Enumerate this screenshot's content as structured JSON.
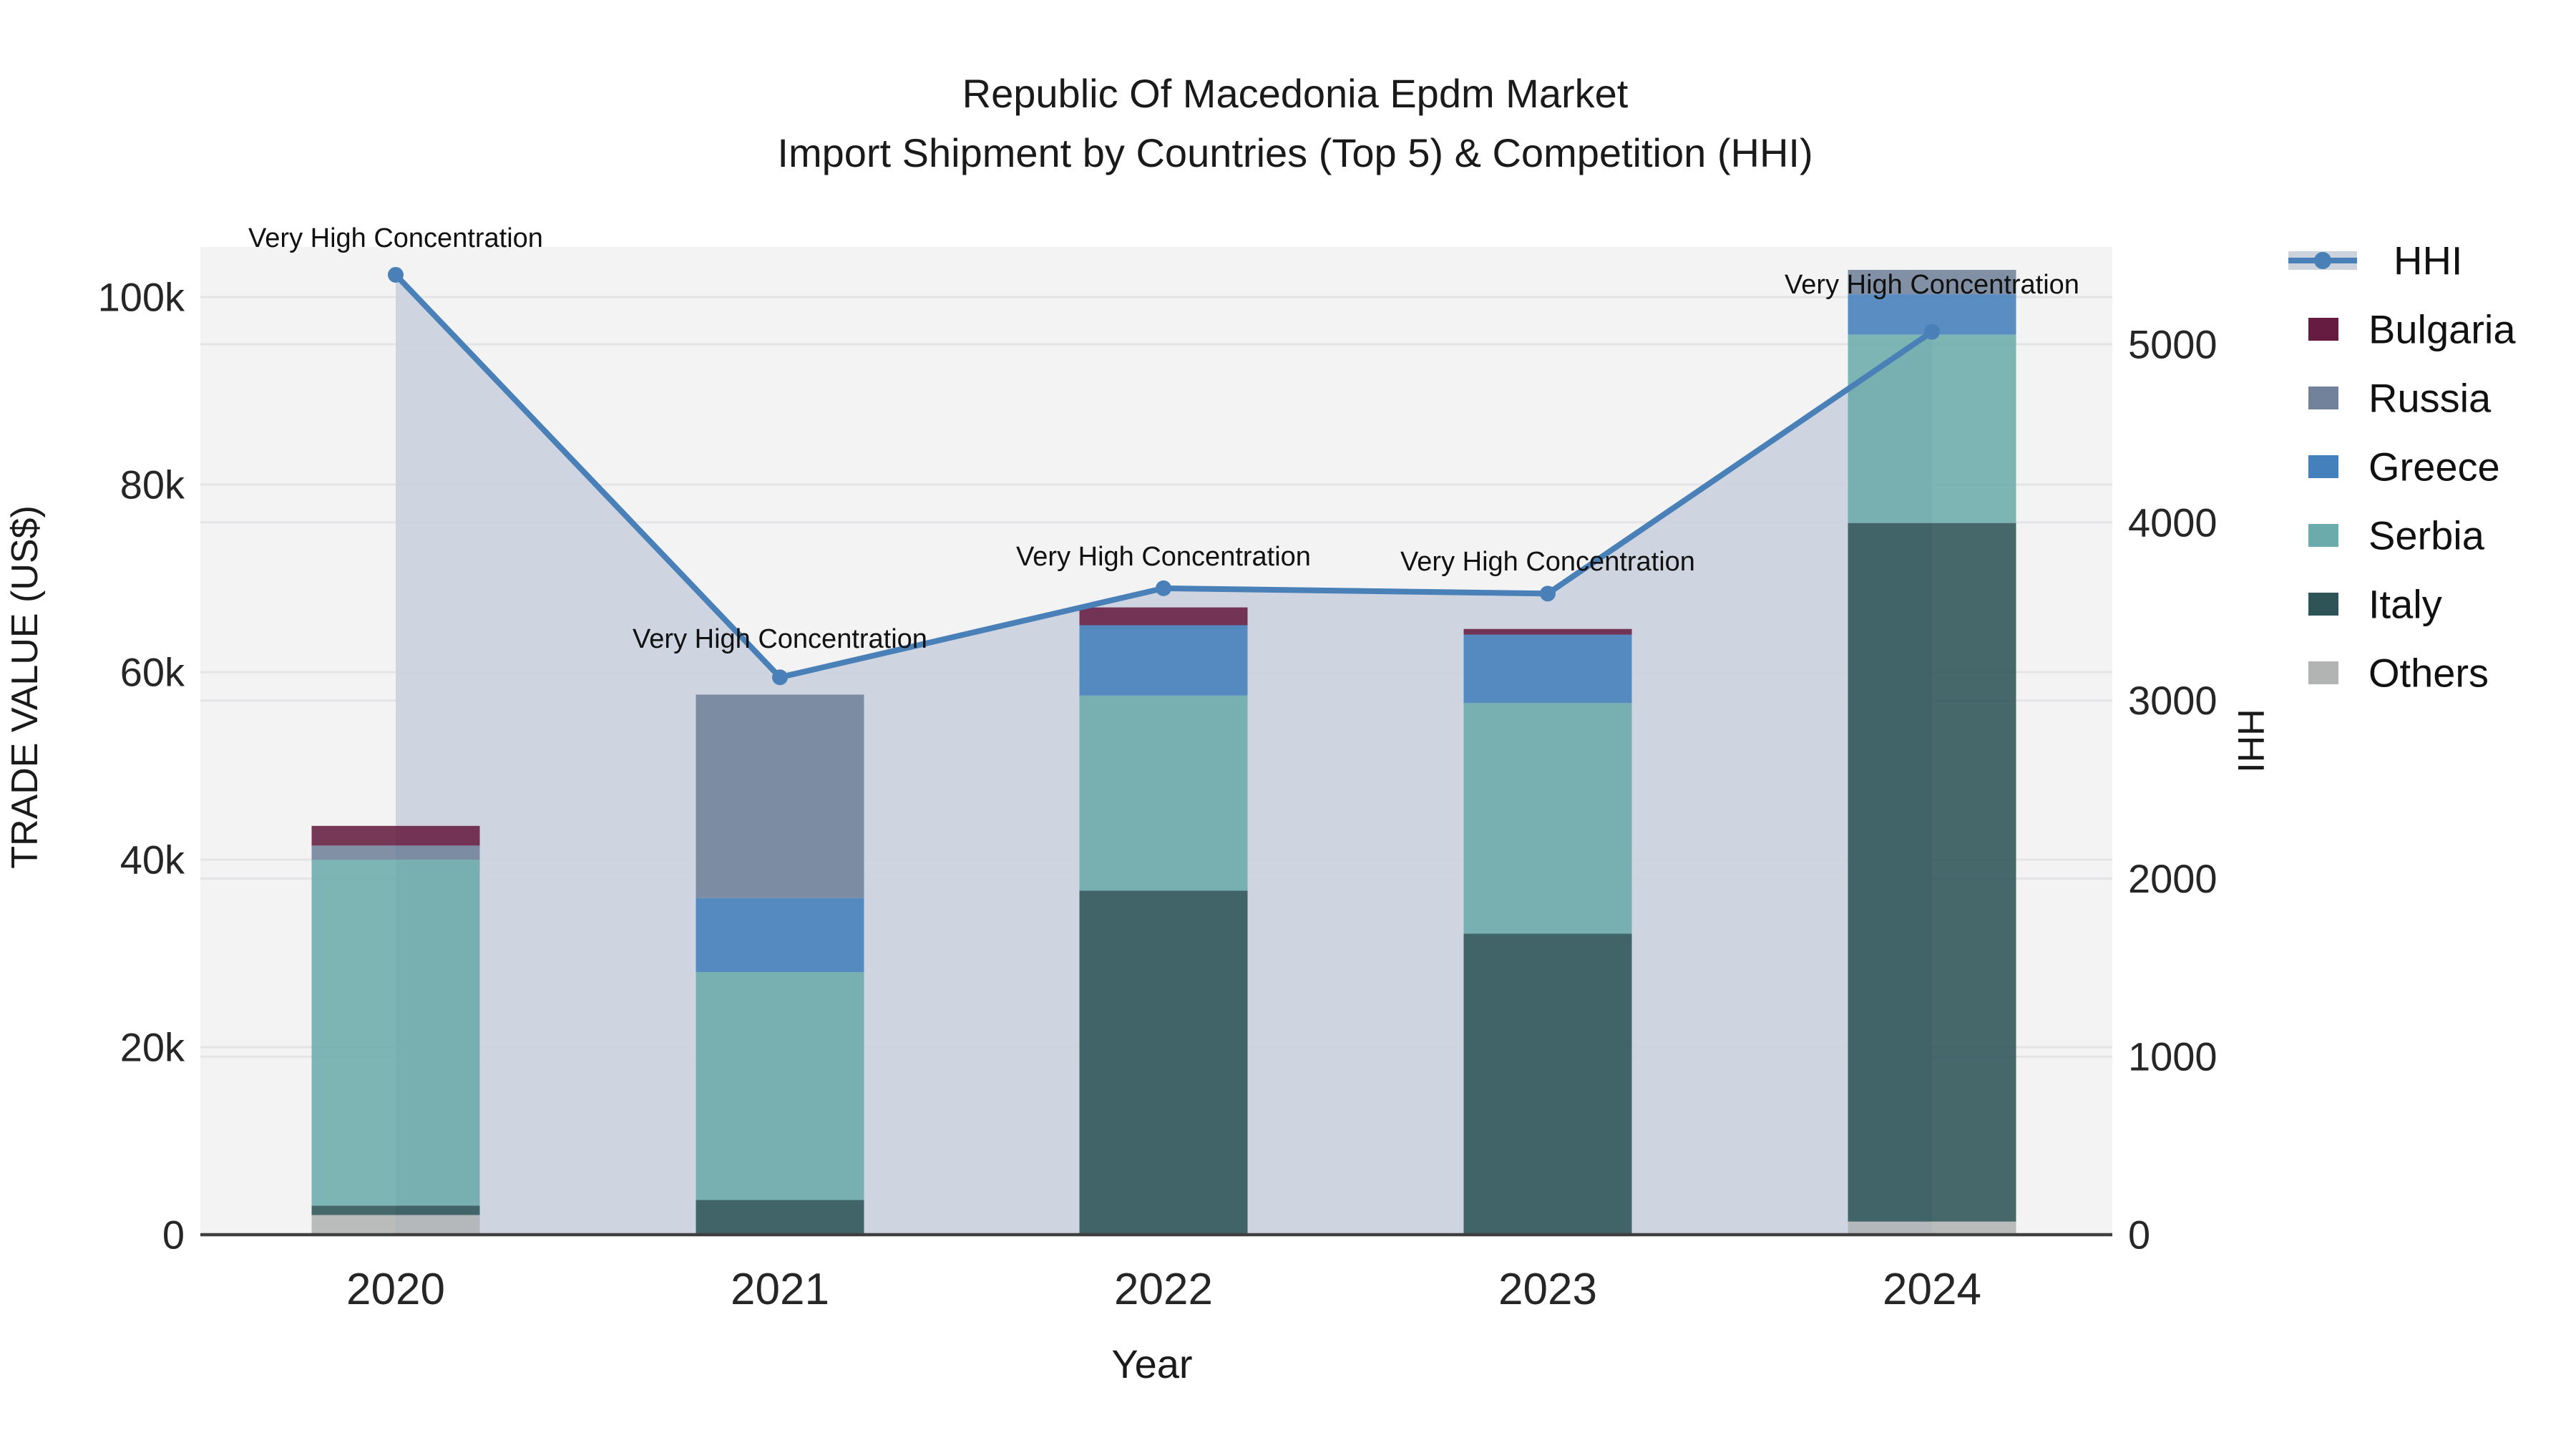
{
  "title": {
    "line1": "Republic Of Macedonia Epdm Market",
    "line2": "Import Shipment by Countries (Top 5) & Competition (HHI)"
  },
  "axes": {
    "x_title": "Year",
    "left_title": "TRADE VALUE (US$)",
    "right_title": "HHI",
    "left_ticks": [
      {
        "value": 0,
        "label": "0"
      },
      {
        "value": 20000,
        "label": "20k"
      },
      {
        "value": 40000,
        "label": "40k"
      },
      {
        "value": 60000,
        "label": "60k"
      },
      {
        "value": 80000,
        "label": "80k"
      },
      {
        "value": 100000,
        "label": "100k"
      }
    ],
    "right_ticks": [
      {
        "value": 0,
        "label": "0"
      },
      {
        "value": 1000,
        "label": "1000"
      },
      {
        "value": 2000,
        "label": "2000"
      },
      {
        "value": 3000,
        "label": "3000"
      },
      {
        "value": 4000,
        "label": "4000"
      },
      {
        "value": 5000,
        "label": "5000"
      }
    ]
  },
  "colors": {
    "plot_background": "#f3f3f4",
    "gridline": "#e4e4e6",
    "axis_line": "#3f3f3f",
    "hhi_line": "#4a80b8",
    "hhi_area": "#ccd3dd",
    "text": "#1a1a1a"
  },
  "chart_data": {
    "type": "bar+line",
    "title": "Republic Of Macedonia Epdm Market — Import Shipment by Countries (Top 5) & Competition (HHI)",
    "categories": [
      "2020",
      "2021",
      "2022",
      "2023",
      "2024"
    ],
    "xlabel": "Year",
    "ylabel_left": "TRADE VALUE (US$)",
    "ylabel_right": "HHI",
    "ylim_left": [
      0,
      105300
    ],
    "ylim_right": [
      0,
      5547
    ],
    "grid": true,
    "legend_position": "right",
    "bar_stack_order_bottom_to_top": [
      "Others",
      "Italy",
      "Serbia",
      "Greece",
      "Russia",
      "Bulgaria"
    ],
    "series": [
      {
        "name": "Bulgaria",
        "type": "bar",
        "color": "#651c40",
        "values": [
          2100,
          0,
          1900,
          600,
          0
        ]
      },
      {
        "name": "Russia",
        "type": "bar",
        "color": "#71829a",
        "values": [
          1500,
          21700,
          0,
          0,
          2600
        ]
      },
      {
        "name": "Greece",
        "type": "bar",
        "color": "#4480bc",
        "values": [
          0,
          7900,
          7500,
          7300,
          4300
        ]
      },
      {
        "name": "Serbia",
        "type": "bar",
        "color": "#6cabab",
        "values": [
          36900,
          24300,
          20800,
          24600,
          20100
        ]
      },
      {
        "name": "Italy",
        "type": "bar",
        "color": "#2e5458",
        "values": [
          1000,
          3700,
          36700,
          32100,
          74500
        ]
      },
      {
        "name": "Others",
        "type": "bar",
        "color": "#b2b4b4",
        "values": [
          2100,
          0,
          0,
          0,
          1400
        ]
      }
    ],
    "bar_totals": [
      43600,
      57600,
      66900,
      64600,
      102900
    ],
    "line_series": {
      "name": "HHI",
      "type": "line",
      "axis": "right",
      "color": "#4a80b8",
      "area_fill": "#ccd3dd",
      "values": [
        5390,
        3130,
        3630,
        3600,
        5070
      ]
    },
    "annotations": [
      {
        "x": "2020",
        "text": "Very High Concentration"
      },
      {
        "x": "2021",
        "text": "Very High Concentration"
      },
      {
        "x": "2022",
        "text": "Very High Concentration"
      },
      {
        "x": "2023",
        "text": "Very High Concentration"
      },
      {
        "x": "2024",
        "text": "Very High Concentration"
      }
    ]
  },
  "legend": {
    "entries": [
      "HHI",
      "Bulgaria",
      "Russia",
      "Greece",
      "Serbia",
      "Italy",
      "Others"
    ]
  }
}
